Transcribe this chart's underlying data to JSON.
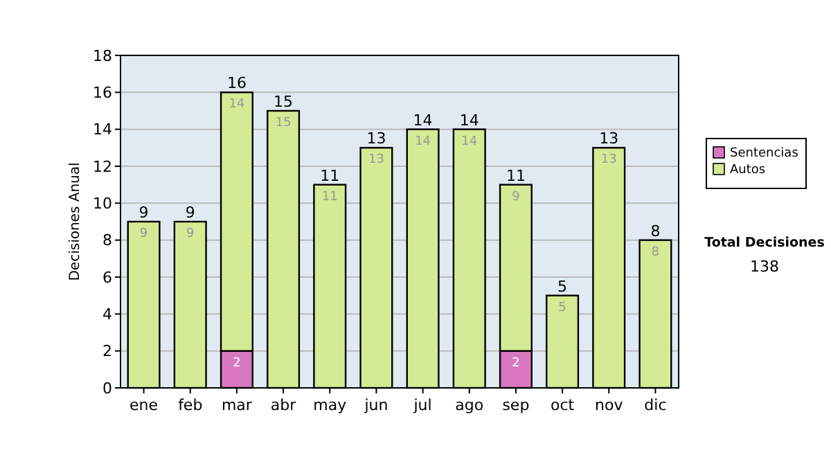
{
  "chart_data": {
    "type": "bar",
    "ylabel": "Decisiones Anual",
    "categories": [
      "ene",
      "feb",
      "mar",
      "abr",
      "may",
      "jun",
      "jul",
      "ago",
      "sep",
      "oct",
      "nov",
      "dic"
    ],
    "stacked": true,
    "ylim": [
      0,
      18
    ],
    "yticks": [
      0,
      2,
      4,
      6,
      8,
      10,
      12,
      14,
      16,
      18
    ],
    "grid": "y",
    "legend": "right",
    "series": [
      {
        "name": "Sentencias",
        "color": "#d877bf",
        "values": [
          0,
          0,
          2,
          0,
          0,
          0,
          0,
          0,
          2,
          0,
          0,
          0
        ],
        "value_labels": [
          null,
          null,
          "2",
          null,
          null,
          null,
          null,
          null,
          "2",
          null,
          null,
          null
        ]
      },
      {
        "name": "Autos",
        "color": "#d4ea94",
        "values": [
          9,
          9,
          14,
          15,
          11,
          13,
          14,
          14,
          9,
          5,
          13,
          8
        ],
        "value_labels": [
          "9",
          "9",
          "14",
          "15",
          "11",
          "13",
          "14",
          "14",
          "9",
          "5",
          "13",
          "8"
        ]
      }
    ],
    "totals": [
      "9",
      "9",
      "16",
      "15",
      "11",
      "13",
      "14",
      "14",
      "11",
      "5",
      "13",
      "8"
    ],
    "annotations": [
      "Total Decisiones",
      "138"
    ]
  }
}
